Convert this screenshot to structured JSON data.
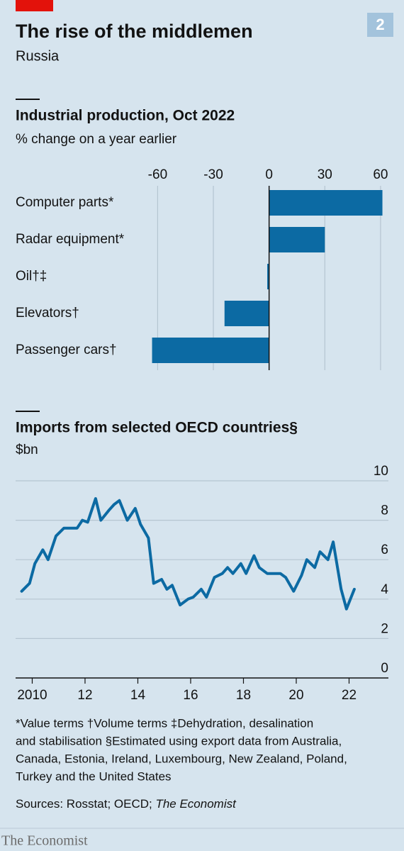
{
  "title": "The rise of the middlemen",
  "subtitle": "Russia",
  "badge": "2",
  "chart_data": [
    {
      "type": "bar",
      "orientation": "horizontal",
      "title": "Industrial production, Oct 2022",
      "subtitle": "% change on a year earlier",
      "categories": [
        "Computer parts*",
        "Radar equipment*",
        "Oil†‡",
        "Elevators†",
        "Passenger cars†"
      ],
      "values": [
        61,
        30,
        -1,
        -24,
        -63
      ],
      "color": "#0c6aa3",
      "xlim": [
        -65.5,
        62.7
      ],
      "xticks": [
        -60,
        -30,
        0,
        30,
        60
      ],
      "grid": true
    },
    {
      "type": "line",
      "title": "Imports from selected OECD countries§",
      "subtitle": "$bn",
      "x": [
        2009.6,
        2009.9,
        2010.1,
        2010.4,
        2010.6,
        2010.9,
        2011.2,
        2011.5,
        2011.7,
        2011.9,
        2012.1,
        2012.4,
        2012.6,
        2012.9,
        2013.1,
        2013.3,
        2013.6,
        2013.9,
        2014.1,
        2014.4,
        2014.6,
        2014.9,
        2015.1,
        2015.3,
        2015.6,
        2015.9,
        2016.1,
        2016.4,
        2016.6,
        2016.9,
        2017.2,
        2017.4,
        2017.6,
        2017.9,
        2018.1,
        2018.4,
        2018.6,
        2018.9,
        2019.1,
        2019.4,
        2019.6,
        2019.9,
        2020.2,
        2020.4,
        2020.7,
        2020.9,
        2021.2,
        2021.4,
        2021.7,
        2021.9,
        2022.2
      ],
      "values": [
        4.4,
        4.8,
        5.8,
        6.5,
        6.0,
        7.2,
        7.6,
        7.6,
        7.6,
        8.0,
        7.9,
        9.1,
        8.0,
        8.5,
        8.8,
        9.0,
        8.0,
        8.6,
        7.8,
        7.1,
        4.8,
        5.0,
        4.5,
        4.7,
        3.7,
        4.0,
        4.1,
        4.5,
        4.1,
        5.1,
        5.3,
        5.6,
        5.3,
        5.8,
        5.3,
        6.2,
        5.6,
        5.3,
        5.3,
        5.3,
        5.1,
        4.4,
        5.2,
        6.0,
        5.6,
        6.4,
        6.0,
        6.9,
        4.5,
        3.5,
        4.5
      ],
      "color": "#0c6aa3",
      "xlim": [
        2009.37,
        2023.49
      ],
      "xticks": [
        2010,
        {
          "value": 2012,
          "label": "12"
        },
        {
          "value": 2014,
          "label": "14"
        },
        {
          "value": 2016,
          "label": "16"
        },
        {
          "value": 2018,
          "label": "18"
        },
        {
          "value": 2020,
          "label": "20"
        },
        {
          "value": 2022,
          "label": "22"
        }
      ],
      "ylim": [
        0,
        10
      ],
      "yticks": [
        0,
        2,
        4,
        6,
        8,
        10
      ],
      "grid": true
    }
  ],
  "footnotes": [
    "*Value terms  †Volume terms  ‡Dehydration, desalination",
    "and stabilisation  §Estimated using export data from Australia,",
    "Canada, Estonia, Ireland, Luxembourg, New Zealand, Poland,",
    "Turkey and the United States"
  ],
  "source": [
    "Sources: Rosstat; OECD; ",
    "The Economist"
  ],
  "brand": "The Economist"
}
